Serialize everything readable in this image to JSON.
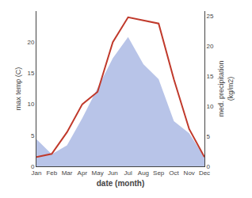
{
  "chart_data": {
    "type": "line",
    "xlabel": "date (month)",
    "ylabel": "max temp (C)",
    "y2label": "med. precipitation\n(kg/m2)",
    "categories": [
      "Jan",
      "Feb",
      "Mar",
      "Apr",
      "May",
      "Jun",
      "Jul",
      "Aug",
      "Sep",
      "Oct",
      "Nov",
      "Dec"
    ],
    "series": [
      {
        "type": "area",
        "axis": "y2",
        "color": "#b8c4e8",
        "values": [
          4.5,
          2.0,
          3.5,
          8.0,
          13.0,
          18.0,
          21.5,
          17.0,
          14.5,
          7.5,
          5.5,
          1.5
        ]
      },
      {
        "type": "line",
        "color": "#c0392b",
        "values": [
          1.5,
          2.0,
          5.5,
          10.0,
          12.0,
          20.0,
          24.0,
          23.5,
          23.0,
          14.0,
          6.0,
          1.5
        ]
      }
    ],
    "ylim": [
      0,
      25
    ],
    "yticks": [
      0,
      5,
      10,
      15,
      20
    ],
    "y2lim": [
      0,
      25.83
    ],
    "y2ticks": [
      0,
      5,
      10,
      15,
      20,
      25
    ],
    "grid": false
  }
}
